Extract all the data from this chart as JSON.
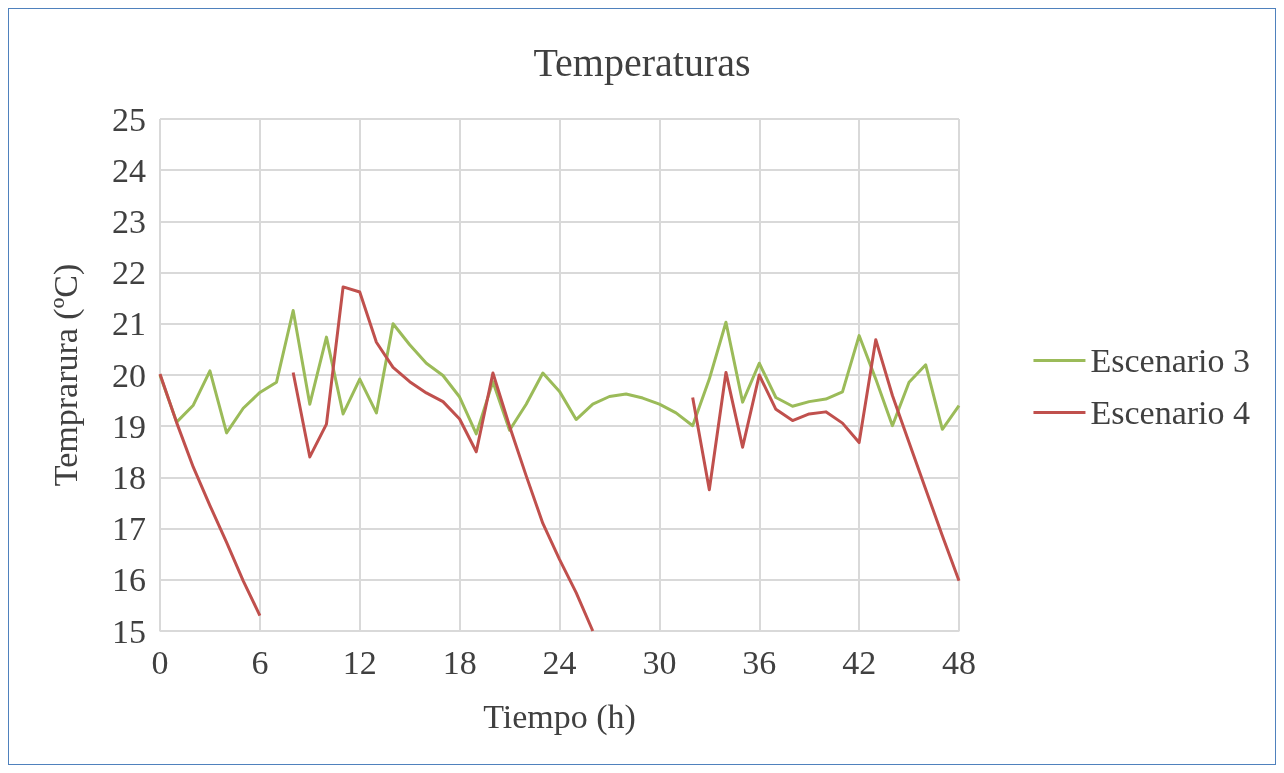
{
  "chart_data": {
    "type": "line",
    "title": "Temperaturas",
    "xlabel": "Tiempo (h)",
    "ylabel": "Temprarura (ºC)",
    "x": [
      0,
      1,
      2,
      3,
      4,
      5,
      6,
      7,
      8,
      9,
      10,
      11,
      12,
      13,
      14,
      15,
      16,
      17,
      18,
      19,
      20,
      21,
      22,
      23,
      24,
      25,
      26,
      27,
      28,
      29,
      30,
      31,
      32,
      33,
      34,
      35,
      36,
      37,
      38,
      39,
      40,
      41,
      42,
      43,
      44,
      45,
      46,
      47,
      48
    ],
    "series": [
      {
        "name": "Escenario 3",
        "color": "#9bbb59",
        "values": [
          20.0,
          19.08,
          19.41,
          20.08,
          18.87,
          19.35,
          19.66,
          19.86,
          21.26,
          19.43,
          20.74,
          19.24,
          19.92,
          19.26,
          21.0,
          20.59,
          20.23,
          19.99,
          19.57,
          18.85,
          19.87,
          18.92,
          19.43,
          20.04,
          19.68,
          19.13,
          19.43,
          19.58,
          19.63,
          19.55,
          19.43,
          19.26,
          19.01,
          19.92,
          21.03,
          19.47,
          20.23,
          19.56,
          19.39,
          19.48,
          19.53,
          19.67,
          20.77,
          19.92,
          19.01,
          19.86,
          20.2,
          18.94,
          19.4
        ]
      },
      {
        "name": "Escenario 4",
        "color": "#c0504d",
        "values": [
          20.02,
          19.07,
          18.2,
          17.45,
          16.73,
          15.98,
          15.3,
          null,
          20.05,
          18.4,
          19.04,
          21.72,
          21.62,
          20.64,
          20.15,
          19.87,
          19.65,
          19.48,
          19.14,
          18.5,
          20.04,
          19.0,
          18.03,
          17.1,
          16.4,
          15.75,
          15.0,
          null,
          null,
          null,
          null,
          null,
          19.56,
          17.76,
          20.05,
          18.59,
          20.0,
          19.33,
          19.11,
          19.24,
          19.28,
          19.06,
          18.68,
          20.69,
          19.6,
          18.68,
          17.77,
          16.86,
          15.98
        ]
      }
    ],
    "xlim": [
      0,
      48
    ],
    "xticks": [
      0,
      6,
      12,
      18,
      24,
      30,
      36,
      42,
      48
    ],
    "ylim": [
      15,
      25
    ],
    "yticks": [
      15,
      16,
      17,
      18,
      19,
      20,
      21,
      22,
      23,
      24,
      25
    ],
    "grid": true,
    "legend": "right",
    "marker": "none",
    "line_style": "solid"
  }
}
